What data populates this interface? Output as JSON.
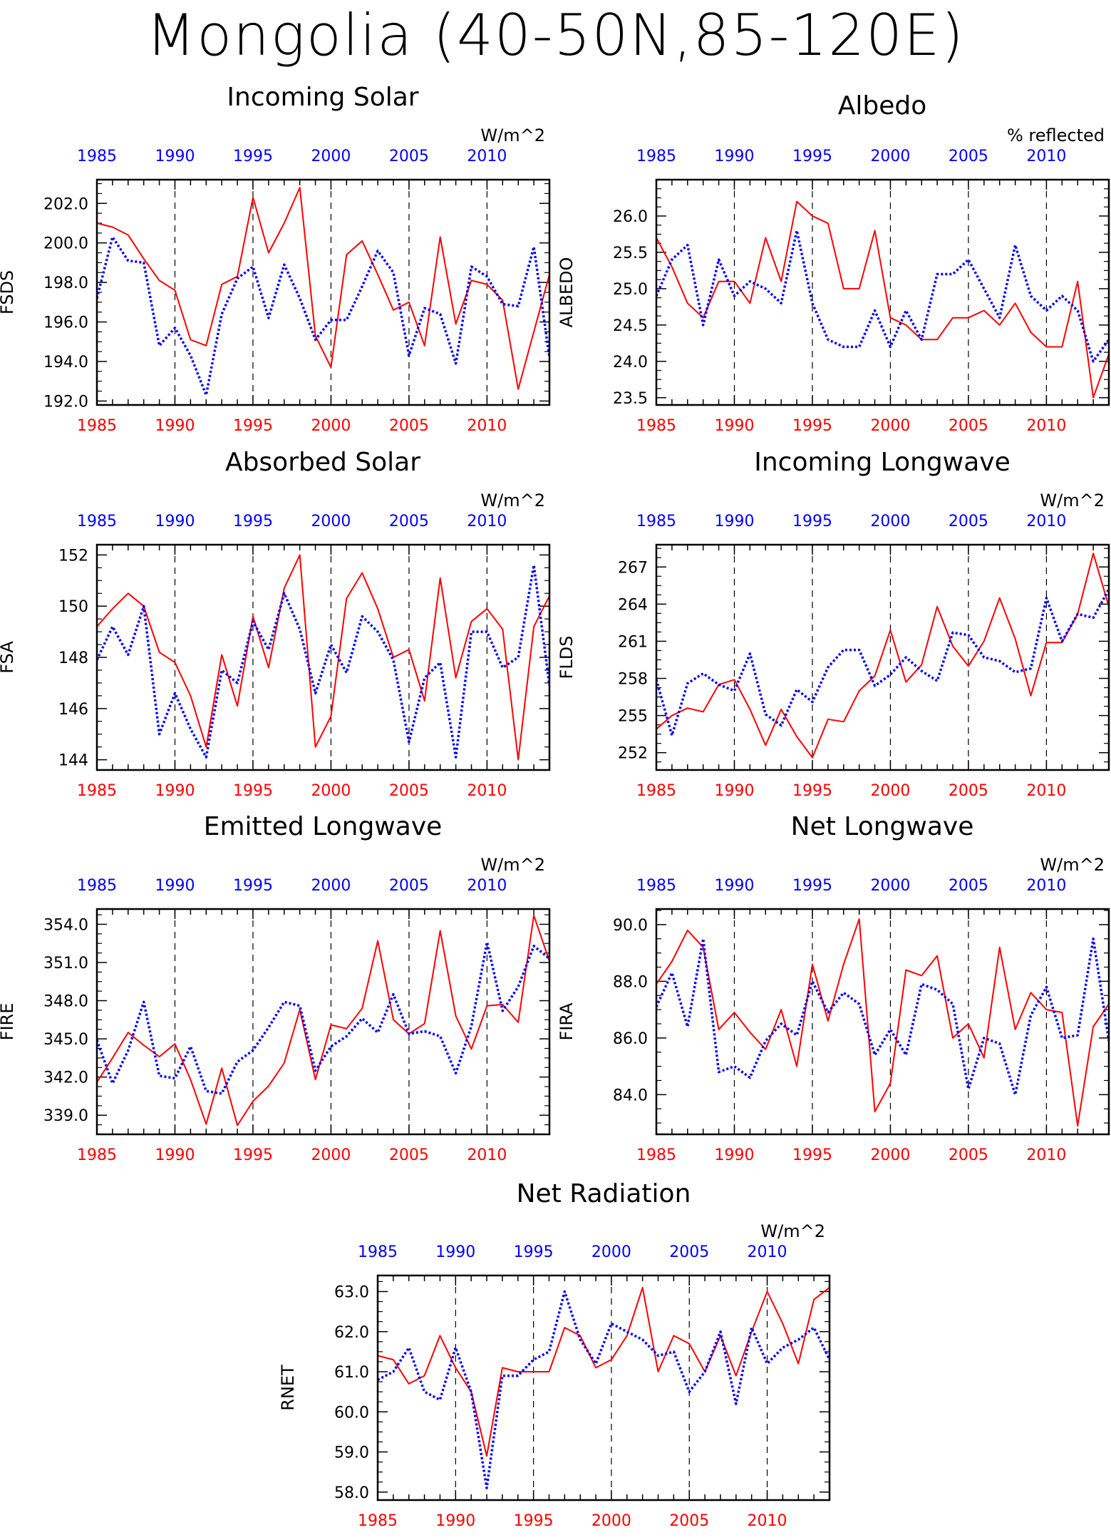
{
  "page_title": "Mongolia (40-50N,85-120E)",
  "colors": {
    "series_red": "#ff0000",
    "series_blue": "#0000ff"
  },
  "chart_data": [
    {
      "type": "line",
      "title": "Incoming Solar",
      "ylabel": "FSDS",
      "units": "W/m^2",
      "x": [
        1985,
        1986,
        1987,
        1988,
        1989,
        1990,
        1991,
        1992,
        1993,
        1994,
        1995,
        1996,
        1997,
        1998,
        1999,
        2000,
        2001,
        2002,
        2003,
        2004,
        2005,
        2006,
        2007,
        2008,
        2009,
        2010,
        2011,
        2012,
        2013,
        2014
      ],
      "xlim": [
        1985,
        2014
      ],
      "xticks": [
        1985,
        1990,
        1995,
        2000,
        2005,
        2010
      ],
      "ylim": [
        191.8,
        203.2
      ],
      "yticks": [
        192.0,
        194.0,
        196.0,
        198.0,
        200.0,
        202.0
      ],
      "ytick_labels": [
        "192.0",
        "194.0",
        "196.0",
        "198.0",
        "200.0",
        "202.0"
      ],
      "series": [
        {
          "color": "#ff0000",
          "style": "solid",
          "values": [
            201.0,
            200.8,
            200.4,
            199.2,
            198.1,
            197.6,
            195.1,
            194.8,
            197.9,
            198.3,
            202.3,
            199.5,
            201.0,
            202.8,
            195.3,
            193.7,
            199.4,
            200.1,
            198.4,
            196.6,
            197.0,
            194.8,
            200.3,
            195.9,
            198.1,
            197.9,
            197.1,
            192.6,
            195.5,
            198.4
          ]
        },
        {
          "color": "#0000ff",
          "style": "dotted",
          "values": [
            197.2,
            200.3,
            199.1,
            199.0,
            194.8,
            195.7,
            194.3,
            192.3,
            196.4,
            198.2,
            198.8,
            196.2,
            198.9,
            197.2,
            195.1,
            196.1,
            196.1,
            197.8,
            199.6,
            198.5,
            194.3,
            196.7,
            196.4,
            193.9,
            198.8,
            198.3,
            196.9,
            196.8,
            199.8,
            194.2
          ]
        }
      ]
    },
    {
      "type": "line",
      "title": "Albedo",
      "ylabel": "ALBEDO",
      "units": "% reflected",
      "x": [
        1985,
        1986,
        1987,
        1988,
        1989,
        1990,
        1991,
        1992,
        1993,
        1994,
        1995,
        1996,
        1997,
        1998,
        1999,
        2000,
        2001,
        2002,
        2003,
        2004,
        2005,
        2006,
        2007,
        2008,
        2009,
        2010,
        2011,
        2012,
        2013,
        2014
      ],
      "xlim": [
        1985,
        2014
      ],
      "xticks": [
        1985,
        1990,
        1995,
        2000,
        2005,
        2010
      ],
      "ylim": [
        23.4,
        26.5
      ],
      "yticks": [
        23.5,
        24.0,
        24.5,
        25.0,
        25.5,
        26.0
      ],
      "ytick_labels": [
        "23.5",
        "24.0",
        "24.5",
        "25.0",
        "25.5",
        "26.0"
      ],
      "series": [
        {
          "color": "#ff0000",
          "style": "solid",
          "values": [
            25.7,
            25.3,
            24.8,
            24.6,
            25.1,
            25.1,
            24.8,
            25.7,
            25.1,
            26.2,
            26.0,
            25.9,
            25.0,
            25.0,
            25.8,
            24.6,
            24.5,
            24.3,
            24.3,
            24.6,
            24.6,
            24.7,
            24.5,
            24.8,
            24.4,
            24.2,
            24.2,
            25.1,
            23.5,
            24.1
          ]
        },
        {
          "color": "#0000ff",
          "style": "dotted",
          "values": [
            24.9,
            25.4,
            25.6,
            24.5,
            25.4,
            24.9,
            25.1,
            25.0,
            24.8,
            25.8,
            24.8,
            24.3,
            24.2,
            24.2,
            24.7,
            24.2,
            24.7,
            24.3,
            25.2,
            25.2,
            25.4,
            25.0,
            24.6,
            25.6,
            24.9,
            24.7,
            24.9,
            24.7,
            24.0,
            24.3
          ]
        }
      ]
    },
    {
      "type": "line",
      "title": "Absorbed Solar",
      "ylabel": "FSA",
      "units": "W/m^2",
      "x": [
        1985,
        1986,
        1987,
        1988,
        1989,
        1990,
        1991,
        1992,
        1993,
        1994,
        1995,
        1996,
        1997,
        1998,
        1999,
        2000,
        2001,
        2002,
        2003,
        2004,
        2005,
        2006,
        2007,
        2008,
        2009,
        2010,
        2011,
        2012,
        2013,
        2014
      ],
      "xlim": [
        1985,
        2014
      ],
      "xticks": [
        1985,
        1990,
        1995,
        2000,
        2005,
        2010
      ],
      "ylim": [
        143.6,
        152.4
      ],
      "yticks": [
        144,
        146,
        148,
        150,
        152
      ],
      "ytick_labels": [
        "144",
        "146",
        "148",
        "150",
        "152"
      ],
      "series": [
        {
          "color": "#ff0000",
          "style": "solid",
          "values": [
            149.2,
            149.9,
            150.5,
            150.0,
            148.2,
            147.8,
            146.5,
            144.5,
            148.1,
            146.1,
            149.6,
            147.6,
            150.7,
            152.0,
            144.5,
            145.7,
            150.3,
            151.3,
            149.9,
            148.0,
            148.3,
            146.3,
            151.1,
            147.2,
            149.4,
            149.9,
            149.1,
            144.0,
            149.2,
            150.4
          ]
        },
        {
          "color": "#0000ff",
          "style": "dotted",
          "values": [
            147.9,
            149.2,
            148.1,
            150.0,
            145.0,
            146.6,
            145.2,
            144.1,
            147.5,
            147.0,
            149.4,
            148.3,
            150.5,
            149.1,
            146.6,
            148.5,
            147.4,
            149.6,
            149.0,
            147.9,
            144.7,
            147.2,
            147.8,
            144.1,
            149.0,
            149.0,
            147.6,
            148.0,
            151.6,
            146.9
          ]
        }
      ]
    },
    {
      "type": "line",
      "title": "Incoming Longwave",
      "ylabel": "FLDS",
      "units": "W/m^2",
      "x": [
        1985,
        1986,
        1987,
        1988,
        1989,
        1990,
        1991,
        1992,
        1993,
        1994,
        1995,
        1996,
        1997,
        1998,
        1999,
        2000,
        2001,
        2002,
        2003,
        2004,
        2005,
        2006,
        2007,
        2008,
        2009,
        2010,
        2011,
        2012,
        2013,
        2014
      ],
      "xlim": [
        1985,
        2014
      ],
      "xticks": [
        1985,
        1990,
        1995,
        2000,
        2005,
        2010
      ],
      "ylim": [
        250.6,
        268.8
      ],
      "yticks": [
        252,
        255,
        258,
        261,
        264,
        267
      ],
      "ytick_labels": [
        "252",
        "255",
        "258",
        "261",
        "264",
        "267"
      ],
      "series": [
        {
          "color": "#ff0000",
          "style": "solid",
          "values": [
            253.9,
            255.0,
            255.6,
            255.3,
            257.5,
            257.9,
            255.5,
            252.6,
            255.5,
            253.3,
            251.6,
            254.7,
            254.5,
            257.0,
            258.2,
            261.9,
            257.7,
            259.1,
            263.8,
            260.6,
            259.0,
            261.0,
            264.5,
            261.2,
            256.6,
            260.9,
            260.9,
            263.2,
            268.1,
            263.8
          ]
        },
        {
          "color": "#0000ff",
          "style": "dotted",
          "values": [
            257.9,
            253.4,
            257.6,
            258.4,
            257.5,
            257.0,
            260.0,
            255.1,
            254.2,
            257.1,
            256.1,
            258.9,
            260.3,
            260.3,
            257.4,
            258.3,
            259.7,
            258.6,
            257.8,
            261.7,
            261.5,
            259.7,
            259.4,
            258.5,
            258.8,
            264.5,
            261.0,
            263.2,
            262.9,
            265.2
          ]
        }
      ]
    },
    {
      "type": "line",
      "title": "Emitted Longwave",
      "ylabel": "FIRE",
      "units": "W/m^2",
      "x": [
        1985,
        1986,
        1987,
        1988,
        1989,
        1990,
        1991,
        1992,
        1993,
        1994,
        1995,
        1996,
        1997,
        1998,
        1999,
        2000,
        2001,
        2002,
        2003,
        2004,
        2005,
        2006,
        2007,
        2008,
        2009,
        2010,
        2011,
        2012,
        2013,
        2014
      ],
      "xlim": [
        1985,
        2014
      ],
      "xticks": [
        1985,
        1990,
        1995,
        2000,
        2005,
        2010
      ],
      "ylim": [
        337.5,
        355.2
      ],
      "yticks": [
        339.0,
        342.0,
        345.0,
        348.0,
        351.0,
        354.0
      ],
      "ytick_labels": [
        "339.0",
        "342.0",
        "345.0",
        "348.0",
        "351.0",
        "354.0"
      ],
      "series": [
        {
          "color": "#ff0000",
          "style": "solid",
          "values": [
            341.6,
            343.5,
            345.5,
            344.5,
            343.6,
            344.6,
            341.8,
            338.3,
            342.7,
            338.2,
            340.1,
            341.3,
            343.1,
            347.3,
            341.8,
            346.1,
            345.8,
            347.4,
            352.7,
            346.5,
            345.4,
            346.2,
            353.5,
            346.8,
            344.2,
            347.6,
            347.7,
            346.3,
            354.7,
            351.1
          ]
        },
        {
          "color": "#0000ff",
          "style": "dotted",
          "values": [
            344.9,
            341.5,
            344.1,
            347.9,
            342.1,
            341.9,
            344.4,
            340.9,
            340.7,
            343.2,
            344.1,
            345.9,
            347.9,
            347.6,
            342.5,
            344.4,
            345.2,
            346.6,
            345.5,
            348.5,
            345.4,
            345.6,
            345.2,
            342.3,
            346.0,
            352.6,
            347.2,
            349.1,
            352.3,
            351.3
          ]
        }
      ]
    },
    {
      "type": "line",
      "title": "Net Longwave",
      "ylabel": "FIRA",
      "units": "W/m^2",
      "x": [
        1985,
        1986,
        1987,
        1988,
        1989,
        1990,
        1991,
        1992,
        1993,
        1994,
        1995,
        1996,
        1997,
        1998,
        1999,
        2000,
        2001,
        2002,
        2003,
        2004,
        2005,
        2006,
        2007,
        2008,
        2009,
        2010,
        2011,
        2012,
        2013,
        2014
      ],
      "xlim": [
        1985,
        2014
      ],
      "xticks": [
        1985,
        1990,
        1995,
        2000,
        2005,
        2010
      ],
      "ylim": [
        82.6,
        90.55
      ],
      "yticks": [
        84.0,
        86.0,
        88.0,
        90.0
      ],
      "ytick_labels": [
        "84.0",
        "86.0",
        "88.0",
        "90.0"
      ],
      "series": [
        {
          "color": "#ff0000",
          "style": "solid",
          "values": [
            87.9,
            88.7,
            89.8,
            89.2,
            86.3,
            86.9,
            86.2,
            85.6,
            87.0,
            85.0,
            88.6,
            86.6,
            88.6,
            90.2,
            83.4,
            84.4,
            88.4,
            88.2,
            88.9,
            86.0,
            86.5,
            85.3,
            89.2,
            86.3,
            87.6,
            87.0,
            86.9,
            82.9,
            86.4,
            87.2
          ]
        },
        {
          "color": "#0000ff",
          "style": "dotted",
          "values": [
            87.1,
            88.3,
            86.4,
            89.5,
            84.8,
            85.0,
            84.6,
            85.9,
            86.5,
            86.1,
            88.0,
            86.9,
            87.6,
            87.2,
            85.4,
            86.3,
            85.4,
            87.9,
            87.7,
            87.2,
            84.2,
            86.0,
            85.8,
            84.0,
            86.8,
            87.8,
            86.0,
            86.1,
            89.5,
            85.9
          ]
        }
      ]
    },
    {
      "type": "line",
      "title": "Net Radiation",
      "ylabel": "RNET",
      "units": "W/m^2",
      "x": [
        1985,
        1986,
        1987,
        1988,
        1989,
        1990,
        1991,
        1992,
        1993,
        1994,
        1995,
        1996,
        1997,
        1998,
        1999,
        2000,
        2001,
        2002,
        2003,
        2004,
        2005,
        2006,
        2007,
        2008,
        2009,
        2010,
        2011,
        2012,
        2013,
        2014
      ],
      "xlim": [
        1985,
        2014
      ],
      "xticks": [
        1985,
        1990,
        1995,
        2000,
        2005,
        2010
      ],
      "ylim": [
        57.8,
        63.4
      ],
      "yticks": [
        58.0,
        59.0,
        60.0,
        61.0,
        62.0,
        63.0
      ],
      "ytick_labels": [
        "58.0",
        "59.0",
        "60.0",
        "61.0",
        "62.0",
        "63.0"
      ],
      "series": [
        {
          "color": "#ff0000",
          "style": "solid",
          "values": [
            61.4,
            61.3,
            60.7,
            60.9,
            61.9,
            61.1,
            60.5,
            58.9,
            61.1,
            61.0,
            61.0,
            61.0,
            62.1,
            61.9,
            61.1,
            61.3,
            61.9,
            63.1,
            61.0,
            61.9,
            61.7,
            61.0,
            61.9,
            60.9,
            62.0,
            63.0,
            62.2,
            61.2,
            62.8,
            63.1
          ]
        },
        {
          "color": "#0000ff",
          "style": "dotted",
          "values": [
            60.8,
            61.0,
            61.6,
            60.5,
            60.3,
            61.6,
            60.5,
            58.1,
            60.9,
            60.9,
            61.3,
            61.5,
            63.0,
            61.8,
            61.2,
            62.2,
            62.0,
            61.8,
            61.4,
            61.5,
            60.5,
            61.0,
            62.0,
            60.2,
            62.1,
            61.2,
            61.6,
            61.8,
            62.1,
            61.3
          ]
        }
      ]
    }
  ]
}
